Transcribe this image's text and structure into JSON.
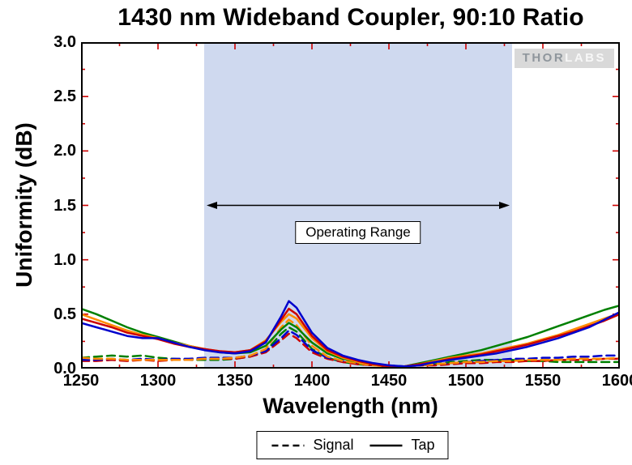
{
  "chart_data": {
    "type": "line",
    "title": "1430 nm Wideband Coupler, 90:10 Ratio",
    "xlabel": "Wavelength (nm)",
    "ylabel": "Uniformity (dB)",
    "xlim": [
      1250,
      1600
    ],
    "ylim": [
      0,
      3.0
    ],
    "grid": false,
    "legend_position": "bottom-center",
    "xticks": [
      1250,
      1300,
      1350,
      1400,
      1450,
      1500,
      1550,
      1600
    ],
    "xtick_labels": [
      "1250",
      "1300",
      "1350",
      "1400",
      "1450",
      "1500",
      "1550",
      "1600"
    ],
    "xticks_minor": [
      1275,
      1325,
      1375,
      1425,
      1475,
      1525,
      1575
    ],
    "yticks": [
      0,
      0.5,
      1.0,
      1.5,
      2.0,
      2.5,
      3.0
    ],
    "ytick_labels": [
      "0.0",
      "0.5",
      "1.0",
      "1.5",
      "2.0",
      "2.5",
      "3.0"
    ],
    "yticks_minor": [
      0.25,
      0.75,
      1.25,
      1.75,
      2.25,
      2.75
    ],
    "tick_color": "#cc0000",
    "frame_color": "#000000",
    "operating_range": {
      "x_start": 1330,
      "x_end": 1530,
      "arrow_y": 1.5,
      "label": "Operating Range",
      "band_color": "#cfd9ef"
    },
    "legend": [
      {
        "label": "Signal",
        "style": "dashed"
      },
      {
        "label": "Tap",
        "style": "solid"
      }
    ],
    "watermark": {
      "text_primary": "THOR",
      "text_secondary": "LABS"
    },
    "x": [
      1250,
      1260,
      1270,
      1280,
      1290,
      1300,
      1310,
      1320,
      1330,
      1340,
      1350,
      1360,
      1370,
      1380,
      1385,
      1390,
      1400,
      1410,
      1420,
      1430,
      1440,
      1450,
      1460,
      1470,
      1480,
      1490,
      1500,
      1510,
      1520,
      1530,
      1540,
      1550,
      1560,
      1570,
      1580,
      1590,
      1600
    ],
    "series": [
      {
        "name": "Signal (green)",
        "group": "Signal",
        "style": "dashed",
        "color": "#008000",
        "values": [
          0.1,
          0.11,
          0.12,
          0.11,
          0.12,
          0.1,
          0.09,
          0.08,
          0.08,
          0.08,
          0.09,
          0.11,
          0.16,
          0.32,
          0.38,
          0.34,
          0.18,
          0.1,
          0.06,
          0.04,
          0.03,
          0.02,
          0.02,
          0.03,
          0.04,
          0.06,
          0.07,
          0.08,
          0.08,
          0.08,
          0.07,
          0.07,
          0.06,
          0.06,
          0.06,
          0.06,
          0.06
        ]
      },
      {
        "name": "Signal (red)",
        "group": "Signal",
        "style": "dashed",
        "color": "#cc0000",
        "values": [
          0.07,
          0.07,
          0.08,
          0.07,
          0.08,
          0.07,
          0.08,
          0.08,
          0.09,
          0.09,
          0.09,
          0.11,
          0.15,
          0.26,
          0.32,
          0.28,
          0.15,
          0.09,
          0.06,
          0.04,
          0.03,
          0.02,
          0.02,
          0.03,
          0.03,
          0.04,
          0.05,
          0.05,
          0.06,
          0.06,
          0.07,
          0.07,
          0.08,
          0.08,
          0.08,
          0.09,
          0.09
        ]
      },
      {
        "name": "Signal (blue)",
        "group": "Signal",
        "style": "dashed",
        "color": "#0000cc",
        "values": [
          0.08,
          0.08,
          0.09,
          0.08,
          0.09,
          0.08,
          0.09,
          0.09,
          0.1,
          0.1,
          0.1,
          0.12,
          0.16,
          0.28,
          0.35,
          0.31,
          0.17,
          0.1,
          0.07,
          0.05,
          0.04,
          0.03,
          0.02,
          0.03,
          0.04,
          0.05,
          0.06,
          0.07,
          0.08,
          0.09,
          0.09,
          0.1,
          0.1,
          0.11,
          0.11,
          0.12,
          0.12
        ]
      },
      {
        "name": "Signal (orange)",
        "group": "Signal",
        "style": "dashed",
        "color": "#ff8c00",
        "values": [
          0.1,
          0.09,
          0.09,
          0.08,
          0.08,
          0.08,
          0.08,
          0.08,
          0.09,
          0.09,
          0.1,
          0.12,
          0.18,
          0.38,
          0.45,
          0.4,
          0.21,
          0.11,
          0.07,
          0.05,
          0.03,
          0.02,
          0.02,
          0.03,
          0.04,
          0.05,
          0.06,
          0.06,
          0.07,
          0.07,
          0.08,
          0.08,
          0.08,
          0.09,
          0.09,
          0.09,
          0.1
        ]
      },
      {
        "name": "Tap (green)",
        "group": "Tap",
        "style": "solid",
        "color": "#008000",
        "values": [
          0.55,
          0.5,
          0.44,
          0.38,
          0.33,
          0.29,
          0.25,
          0.21,
          0.18,
          0.15,
          0.14,
          0.15,
          0.21,
          0.36,
          0.42,
          0.38,
          0.24,
          0.14,
          0.09,
          0.06,
          0.04,
          0.02,
          0.02,
          0.05,
          0.08,
          0.11,
          0.14,
          0.17,
          0.21,
          0.25,
          0.29,
          0.34,
          0.39,
          0.44,
          0.49,
          0.54,
          0.58
        ]
      },
      {
        "name": "Tap (orange)",
        "group": "Tap",
        "style": "solid",
        "color": "#ff8c00",
        "values": [
          0.5,
          0.45,
          0.4,
          0.35,
          0.31,
          0.28,
          0.24,
          0.21,
          0.18,
          0.16,
          0.15,
          0.17,
          0.26,
          0.43,
          0.5,
          0.46,
          0.28,
          0.16,
          0.1,
          0.06,
          0.04,
          0.02,
          0.02,
          0.04,
          0.07,
          0.1,
          0.12,
          0.14,
          0.17,
          0.2,
          0.23,
          0.27,
          0.31,
          0.36,
          0.41,
          0.46,
          0.51
        ]
      },
      {
        "name": "Tap (red)",
        "group": "Tap",
        "style": "solid",
        "color": "#cc0000",
        "values": [
          0.46,
          0.42,
          0.38,
          0.33,
          0.3,
          0.27,
          0.23,
          0.2,
          0.18,
          0.16,
          0.15,
          0.17,
          0.25,
          0.45,
          0.55,
          0.5,
          0.3,
          0.17,
          0.11,
          0.07,
          0.04,
          0.02,
          0.02,
          0.04,
          0.06,
          0.09,
          0.11,
          0.13,
          0.16,
          0.19,
          0.22,
          0.26,
          0.3,
          0.34,
          0.39,
          0.44,
          0.5
        ]
      },
      {
        "name": "Tap (blue)",
        "group": "Tap",
        "style": "solid",
        "color": "#0000cc",
        "values": [
          0.42,
          0.38,
          0.34,
          0.3,
          0.28,
          0.28,
          0.24,
          0.2,
          0.17,
          0.15,
          0.14,
          0.16,
          0.24,
          0.48,
          0.62,
          0.56,
          0.33,
          0.19,
          0.12,
          0.08,
          0.05,
          0.03,
          0.02,
          0.03,
          0.06,
          0.08,
          0.1,
          0.12,
          0.14,
          0.17,
          0.2,
          0.24,
          0.28,
          0.33,
          0.38,
          0.45,
          0.52
        ]
      }
    ]
  }
}
